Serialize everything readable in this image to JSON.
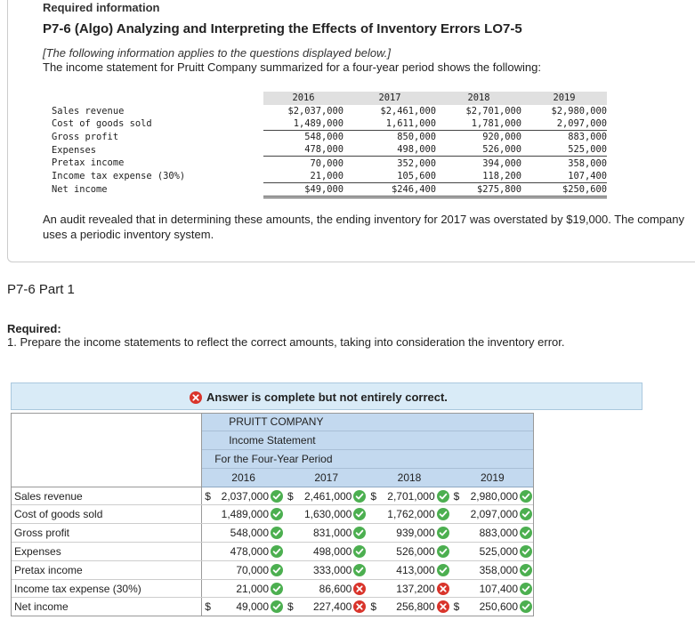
{
  "header": {
    "required_info": "Required information",
    "problem_title": "P7-6 (Algo) Analyzing and Interpreting the Effects of Inventory Errors LO7-5",
    "note": "[The following information applies to the questions displayed below.]",
    "intro": "The income statement for Pruitt Company summarized for a four-year period shows the following:"
  },
  "original_statement": {
    "years": [
      "2016",
      "2017",
      "2018",
      "2019"
    ],
    "rows": [
      {
        "label": "Sales revenue",
        "values": [
          "$2,037,000",
          "$2,461,000",
          "$2,701,000",
          "$2,980,000"
        ]
      },
      {
        "label": "Cost of goods sold",
        "values": [
          "1,489,000",
          "1,611,000",
          "1,781,000",
          "2,097,000"
        ]
      },
      {
        "label": "Gross profit",
        "values": [
          "548,000",
          "850,000",
          "920,000",
          "883,000"
        ]
      },
      {
        "label": "Expenses",
        "values": [
          "478,000",
          "498,000",
          "526,000",
          "525,000"
        ]
      },
      {
        "label": "Pretax income",
        "values": [
          "70,000",
          "352,000",
          "394,000",
          "358,000"
        ]
      },
      {
        "label": "Income tax expense (30%)",
        "values": [
          "21,000",
          "105,600",
          "118,200",
          "107,400"
        ]
      },
      {
        "label": "Net income",
        "values": [
          "$49,000",
          "$246,400",
          "$275,800",
          "$250,600"
        ]
      }
    ]
  },
  "audit_text": "An audit revealed that in determining these amounts, the ending inventory for 2017 was overstated by $19,000. The company uses a periodic inventory system.",
  "part": {
    "title": "P7-6 Part 1",
    "required_label": "Required:",
    "required_text": "1. Prepare the income statements to reflect the correct amounts, taking into consideration the inventory error."
  },
  "banner": {
    "message": "Answer is complete but not entirely correct.",
    "icon": "x-circle-icon"
  },
  "answer": {
    "company": "PRUITT COMPANY",
    "statement": "Income Statement",
    "period": "For the Four-Year Period",
    "years": [
      "2016",
      "2017",
      "2018",
      "2019"
    ],
    "rows": [
      {
        "label": "Sales revenue",
        "cells": [
          {
            "dollar": "$",
            "value": "2,037,000",
            "status": "correct"
          },
          {
            "dollar": "$",
            "value": "2,461,000",
            "status": "correct"
          },
          {
            "dollar": "$",
            "value": "2,701,000",
            "status": "correct"
          },
          {
            "dollar": "$",
            "value": "2,980,000",
            "status": "correct"
          }
        ]
      },
      {
        "label": "Cost of goods sold",
        "cells": [
          {
            "value": "1,489,000",
            "status": "correct"
          },
          {
            "value": "1,630,000",
            "status": "correct"
          },
          {
            "value": "1,762,000",
            "status": "correct"
          },
          {
            "value": "2,097,000",
            "status": "correct"
          }
        ]
      },
      {
        "label": "Gross profit",
        "cells": [
          {
            "value": "548,000",
            "status": "correct"
          },
          {
            "value": "831,000",
            "status": "correct"
          },
          {
            "value": "939,000",
            "status": "correct"
          },
          {
            "value": "883,000",
            "status": "correct"
          }
        ]
      },
      {
        "label": "Expenses",
        "cells": [
          {
            "value": "478,000",
            "status": "correct"
          },
          {
            "value": "498,000",
            "status": "correct"
          },
          {
            "value": "526,000",
            "status": "correct"
          },
          {
            "value": "525,000",
            "status": "correct"
          }
        ]
      },
      {
        "label": "Pretax income",
        "cells": [
          {
            "value": "70,000",
            "status": "correct"
          },
          {
            "value": "333,000",
            "status": "correct"
          },
          {
            "value": "413,000",
            "status": "correct"
          },
          {
            "value": "358,000",
            "status": "correct"
          }
        ]
      },
      {
        "label": "Income tax expense (30%)",
        "cells": [
          {
            "value": "21,000",
            "status": "correct"
          },
          {
            "value": "86,600",
            "status": "incorrect"
          },
          {
            "value": "137,200",
            "status": "incorrect"
          },
          {
            "value": "107,400",
            "status": "correct"
          }
        ]
      },
      {
        "label": "Net income",
        "cells": [
          {
            "dollar": "$",
            "value": "49,000",
            "status": "correct"
          },
          {
            "dollar": "$",
            "value": "227,400",
            "status": "incorrect"
          },
          {
            "dollar": "$",
            "value": "256,800",
            "status": "incorrect"
          },
          {
            "dollar": "$",
            "value": "250,600",
            "status": "correct"
          }
        ]
      }
    ]
  },
  "colors": {
    "correct": "#4caf50",
    "incorrect": "#d9342b",
    "header_blue": "#c3d9ef",
    "banner_blue": "#d9ebf7"
  }
}
